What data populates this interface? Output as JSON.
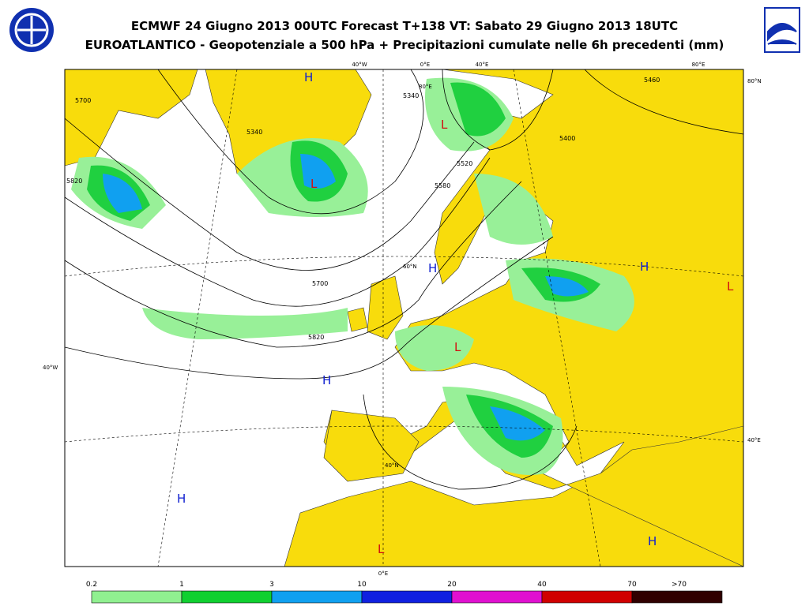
{
  "header": {
    "title": "ECMWF 24 Giugno 2013 00UTC Forecast T+138 VT: Sabato 29 Giugno 2013 18UTC",
    "subtitle": "EUROATLANTICO - Geopotenziale a 500 hPa + Precipitazioni cumulate nelle 6h precedenti (mm)"
  },
  "map": {
    "centers": [
      "H",
      "H",
      "H",
      "H",
      "H",
      "H",
      "L",
      "L",
      "L",
      "L",
      "L"
    ],
    "contour_labels": [
      "5700",
      "5820",
      "5340",
      "5580",
      "5700",
      "5820",
      "5460",
      "5400",
      "5520",
      "5340"
    ],
    "graticule_labels": [
      "40°W",
      "0°E",
      "40°E",
      "80°E",
      "80°N",
      "80°E",
      "40°E",
      "40°W",
      "60°N",
      "40°N",
      "0°E"
    ]
  },
  "legend": {
    "labels": [
      "0.2",
      "1",
      "3",
      "10",
      "20",
      "40",
      "70",
      ">70"
    ],
    "colors": [
      "#90f090",
      "#10d030",
      "#10a0f0",
      "#1020e0",
      "#e010d0",
      "#d00000",
      "#300000"
    ]
  }
}
